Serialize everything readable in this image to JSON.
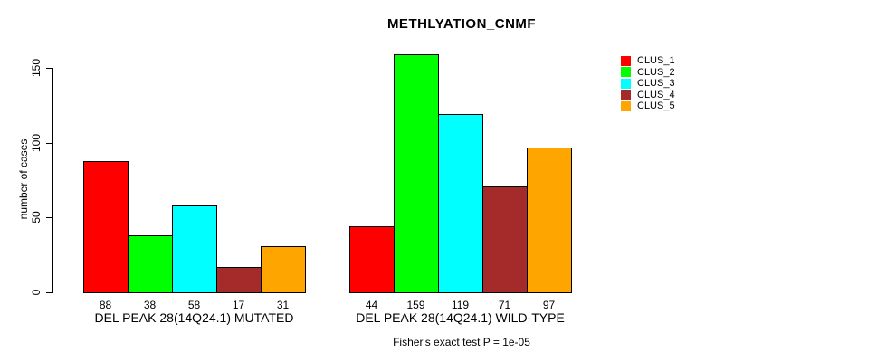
{
  "chart_data": {
    "type": "bar",
    "title": "METHLYATION_CNMF",
    "ylabel": "number of cases",
    "xlabel": "",
    "ylim": [
      0,
      150
    ],
    "yticks": [
      0,
      50,
      100,
      150
    ],
    "grid": false,
    "legend_position": "right",
    "categories": [
      "DEL PEAK 28(14Q24.1) MUTATED",
      "DEL PEAK 28(14Q24.1) WILD-TYPE"
    ],
    "series": [
      {
        "name": "CLUS_1",
        "color": "#FF0000",
        "values": [
          88,
          44
        ]
      },
      {
        "name": "CLUS_2",
        "color": "#00FF00",
        "values": [
          38,
          159
        ]
      },
      {
        "name": "CLUS_3",
        "color": "#00FFFF",
        "values": [
          58,
          119
        ]
      },
      {
        "name": "CLUS_4",
        "color": "#A52A2A",
        "values": [
          17,
          71
        ]
      },
      {
        "name": "CLUS_5",
        "color": "#FFA500",
        "values": [
          31,
          97
        ]
      }
    ],
    "bar_value_labels": [
      [
        88,
        38,
        58,
        17,
        31
      ],
      [
        44,
        159,
        119,
        71,
        97
      ]
    ],
    "annotation": "Fisher's exact test P = 1e-05",
    "colors": {
      "axis": "#000000",
      "bar_border": "#000000",
      "background": "#FFFFFF"
    }
  }
}
